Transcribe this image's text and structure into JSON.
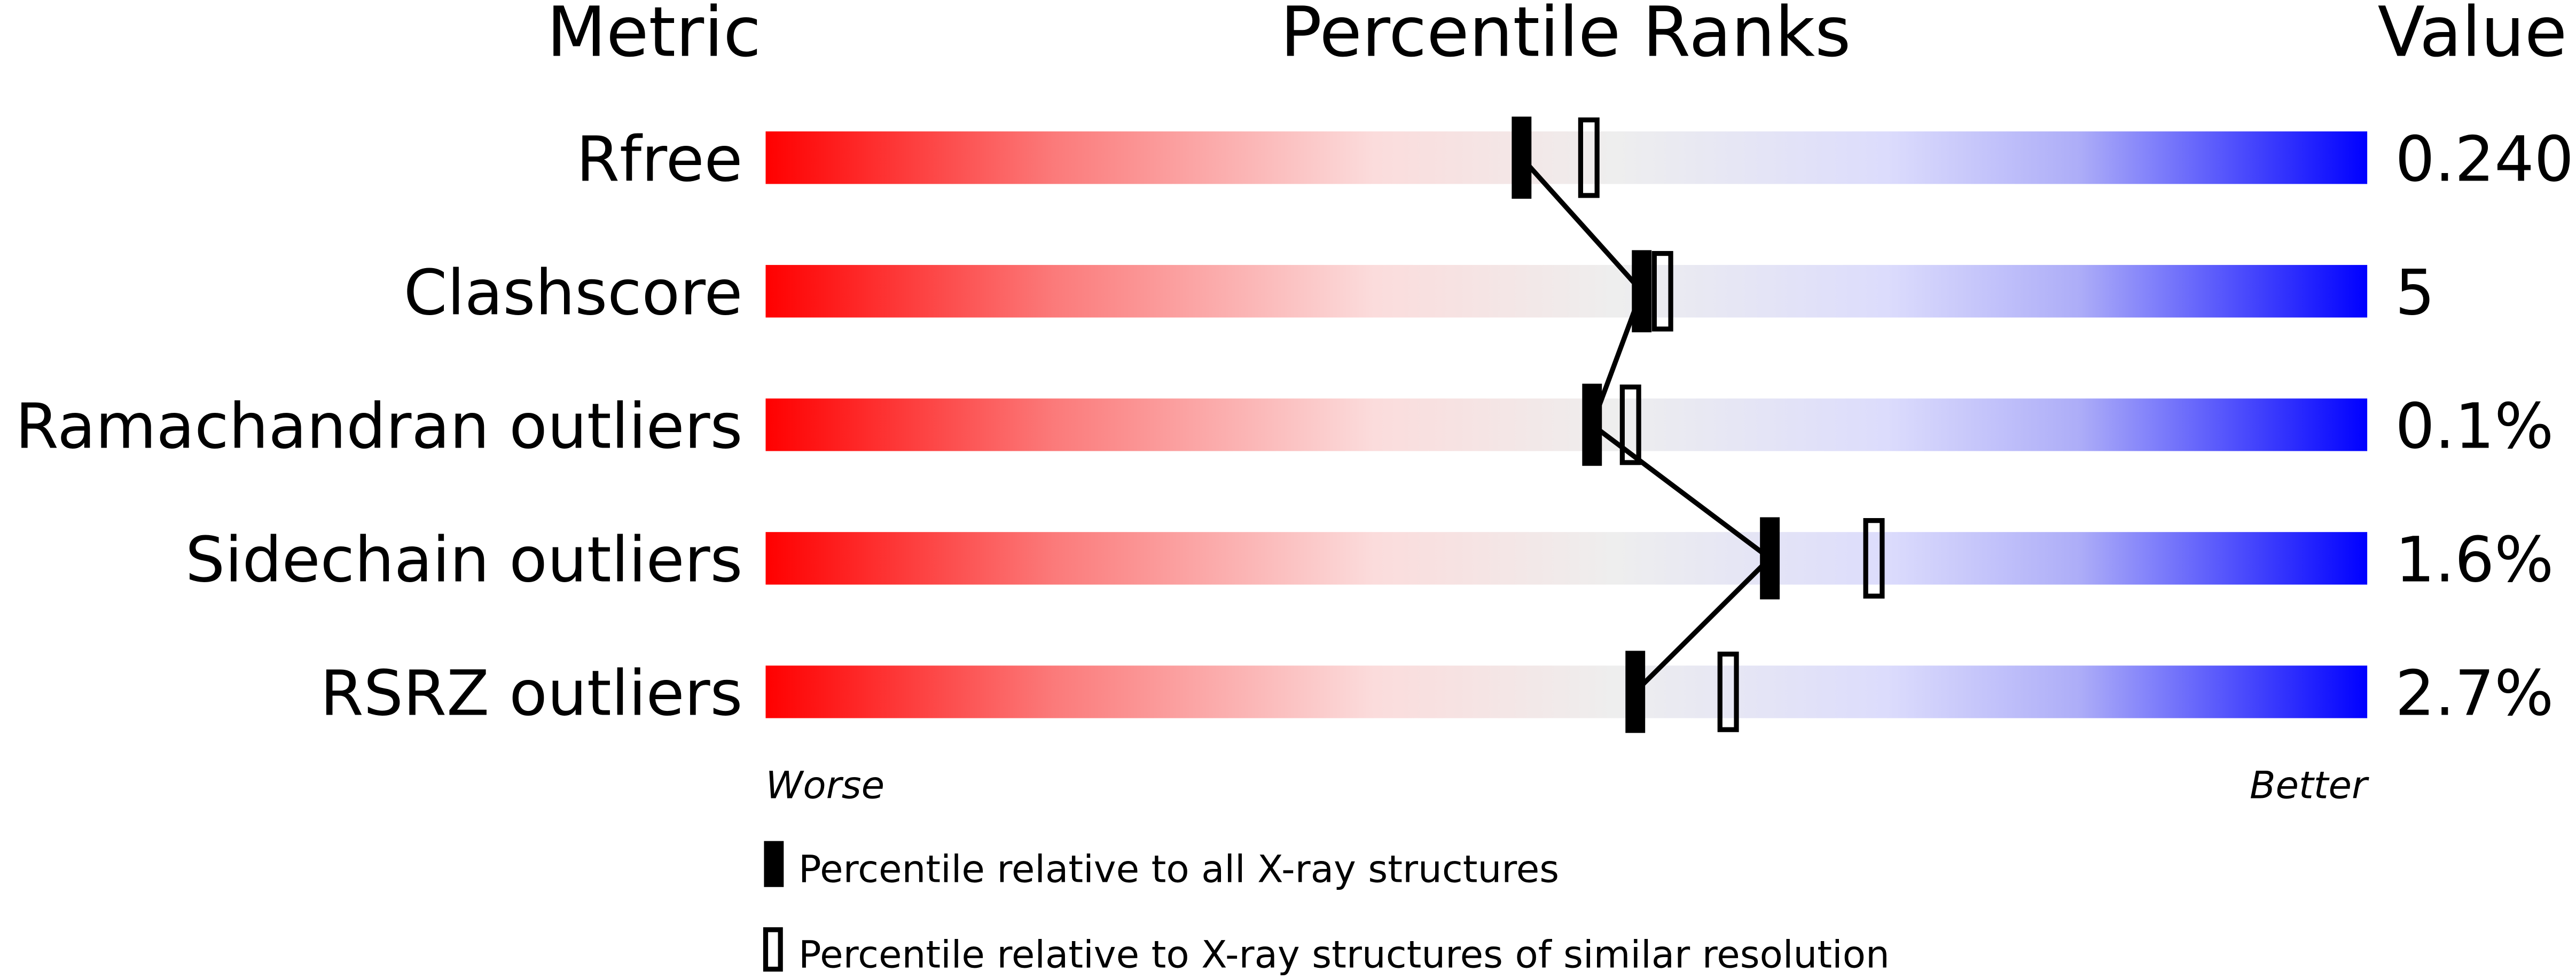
{
  "chart_data": {
    "type": "percentile-bar",
    "headers": {
      "metric": "Metric",
      "ranks": "Percentile Ranks",
      "value": "Value"
    },
    "xlim": [
      0,
      100
    ],
    "axis_labels": {
      "left": "Worse",
      "right": "Better"
    },
    "gradient_colors": [
      "#ff0000",
      "#eeeeee",
      "#0000ff"
    ],
    "rows": [
      {
        "metric": "Rfree",
        "value": "0.240",
        "percentile_all": 47.2,
        "percentile_similar": 51.4
      },
      {
        "metric": "Clashscore",
        "value": "5",
        "percentile_all": 54.7,
        "percentile_similar": 56.0
      },
      {
        "metric": "Ramachandran outliers",
        "value": "0.1%",
        "percentile_all": 51.6,
        "percentile_similar": 54.0
      },
      {
        "metric": "Sidechain outliers",
        "value": "1.6%",
        "percentile_all": 62.7,
        "percentile_similar": 69.2
      },
      {
        "metric": "RSRZ outliers",
        "value": "2.7%",
        "percentile_all": 54.3,
        "percentile_similar": 60.1
      }
    ],
    "legend": [
      {
        "marker": "filled",
        "label": "Percentile relative to all X-ray structures"
      },
      {
        "marker": "open",
        "label": "Percentile relative to X-ray structures of similar resolution"
      }
    ]
  }
}
